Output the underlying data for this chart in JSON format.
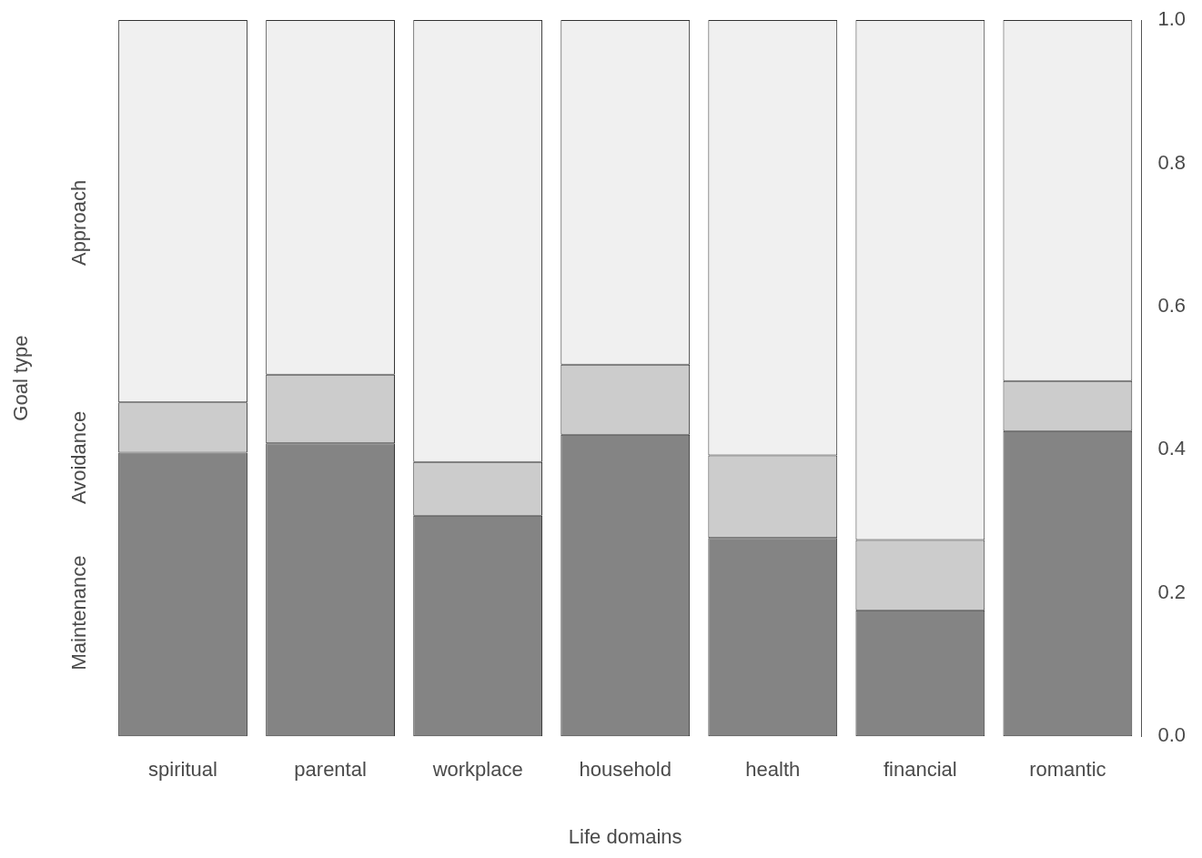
{
  "chart_data": {
    "type": "bar",
    "stacked": true,
    "xlabel": "Life domains",
    "ylabel": "Goal type",
    "categories": [
      "spiritual",
      "parental",
      "workplace",
      "household",
      "health",
      "financial",
      "romantic"
    ],
    "series": [
      {
        "name": "Maintenance",
        "color": "#848484",
        "values": [
          0.396,
          0.409,
          0.308,
          0.421,
          0.277,
          0.176,
          0.426
        ]
      },
      {
        "name": "Avoidance",
        "color": "#cccccc",
        "values": [
          0.07,
          0.096,
          0.075,
          0.098,
          0.115,
          0.098,
          0.07
        ]
      },
      {
        "name": "Approach",
        "color": "#f0f0f0",
        "values": [
          0.534,
          0.495,
          0.617,
          0.481,
          0.608,
          0.726,
          0.504
        ]
      }
    ],
    "ylim": [
      0,
      1
    ],
    "yticks": [
      {
        "value": 0,
        "label": "0.0"
      },
      0.2,
      0.4,
      0.6,
      0.8,
      {
        "value": 1,
        "label": "1.0"
      }
    ],
    "grid": false,
    "legend": false
  }
}
